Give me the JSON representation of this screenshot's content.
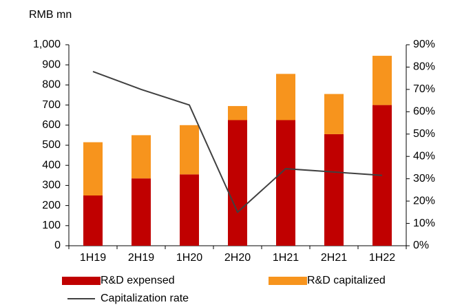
{
  "chart_data": {
    "type": "stacked_bar_line",
    "y_axis_label": "RMB mn",
    "categories": [
      "1H19",
      "2H19",
      "1H20",
      "2H20",
      "1H21",
      "2H21",
      "1H22"
    ],
    "series": [
      {
        "name": "R&D expensed",
        "color": "#c00000",
        "values": [
          250,
          335,
          355,
          625,
          625,
          555,
          700
        ]
      },
      {
        "name": "R&D capitalized",
        "color": "#f7941d",
        "values": [
          265,
          215,
          245,
          70,
          230,
          200,
          245
        ]
      },
      {
        "name": "Capitalization rate",
        "color": "#404040",
        "axis": "y2",
        "values": [
          78,
          70,
          63,
          15,
          34.5,
          33,
          31.5
        ]
      }
    ],
    "ylim": [
      0,
      1000
    ],
    "yticks": [
      0,
      100,
      200,
      300,
      400,
      500,
      600,
      700,
      800,
      900,
      {
        "value": 1000,
        "label": "1,000"
      }
    ],
    "y2lim": [
      0,
      90
    ],
    "y2ticks": [
      {
        "value": 0,
        "label": "0%"
      },
      {
        "value": 10,
        "label": "10%"
      },
      {
        "value": 20,
        "label": "20%"
      },
      {
        "value": 30,
        "label": "30%"
      },
      {
        "value": 40,
        "label": "40%"
      },
      {
        "value": 50,
        "label": "50%"
      },
      {
        "value": 60,
        "label": "60%"
      },
      {
        "value": 70,
        "label": "70%"
      },
      {
        "value": 80,
        "label": "80%"
      },
      {
        "value": 90,
        "label": "90%"
      }
    ],
    "legend": "bottom"
  }
}
